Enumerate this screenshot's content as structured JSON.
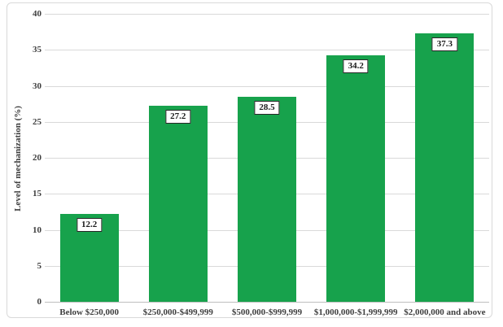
{
  "chart_data": {
    "type": "bar",
    "title": "",
    "categories": [
      "Below $250,000",
      "$250,000-$499,999",
      "$500,000-$999,999",
      "$1,000,000-$1,999,999",
      "$2,000,000 and above"
    ],
    "values": [
      12.2,
      27.2,
      28.5,
      34.2,
      37.3
    ],
    "data_labels": [
      "12.2",
      "27.2",
      "28.5",
      "34.2",
      "37.3"
    ],
    "xlabel": "",
    "ylabel": "Level of mechanization (%)",
    "ylim": [
      0,
      40
    ],
    "ytick_interval": 5,
    "yticks": [
      0,
      5,
      10,
      15,
      20,
      25,
      30,
      35,
      40
    ],
    "grid": "horizontal",
    "legend": "none",
    "data_label_style": "boxed"
  },
  "colors": {
    "bar_fill": "#17a24c",
    "gridline": "#d9d9d9",
    "axis_line": "#bfbfbf",
    "text": "#3f3f3f",
    "label_box_border": "#262626",
    "label_box_fill": "#ffffff",
    "frame_border": "#d9d9d9",
    "background": "#ffffff"
  }
}
